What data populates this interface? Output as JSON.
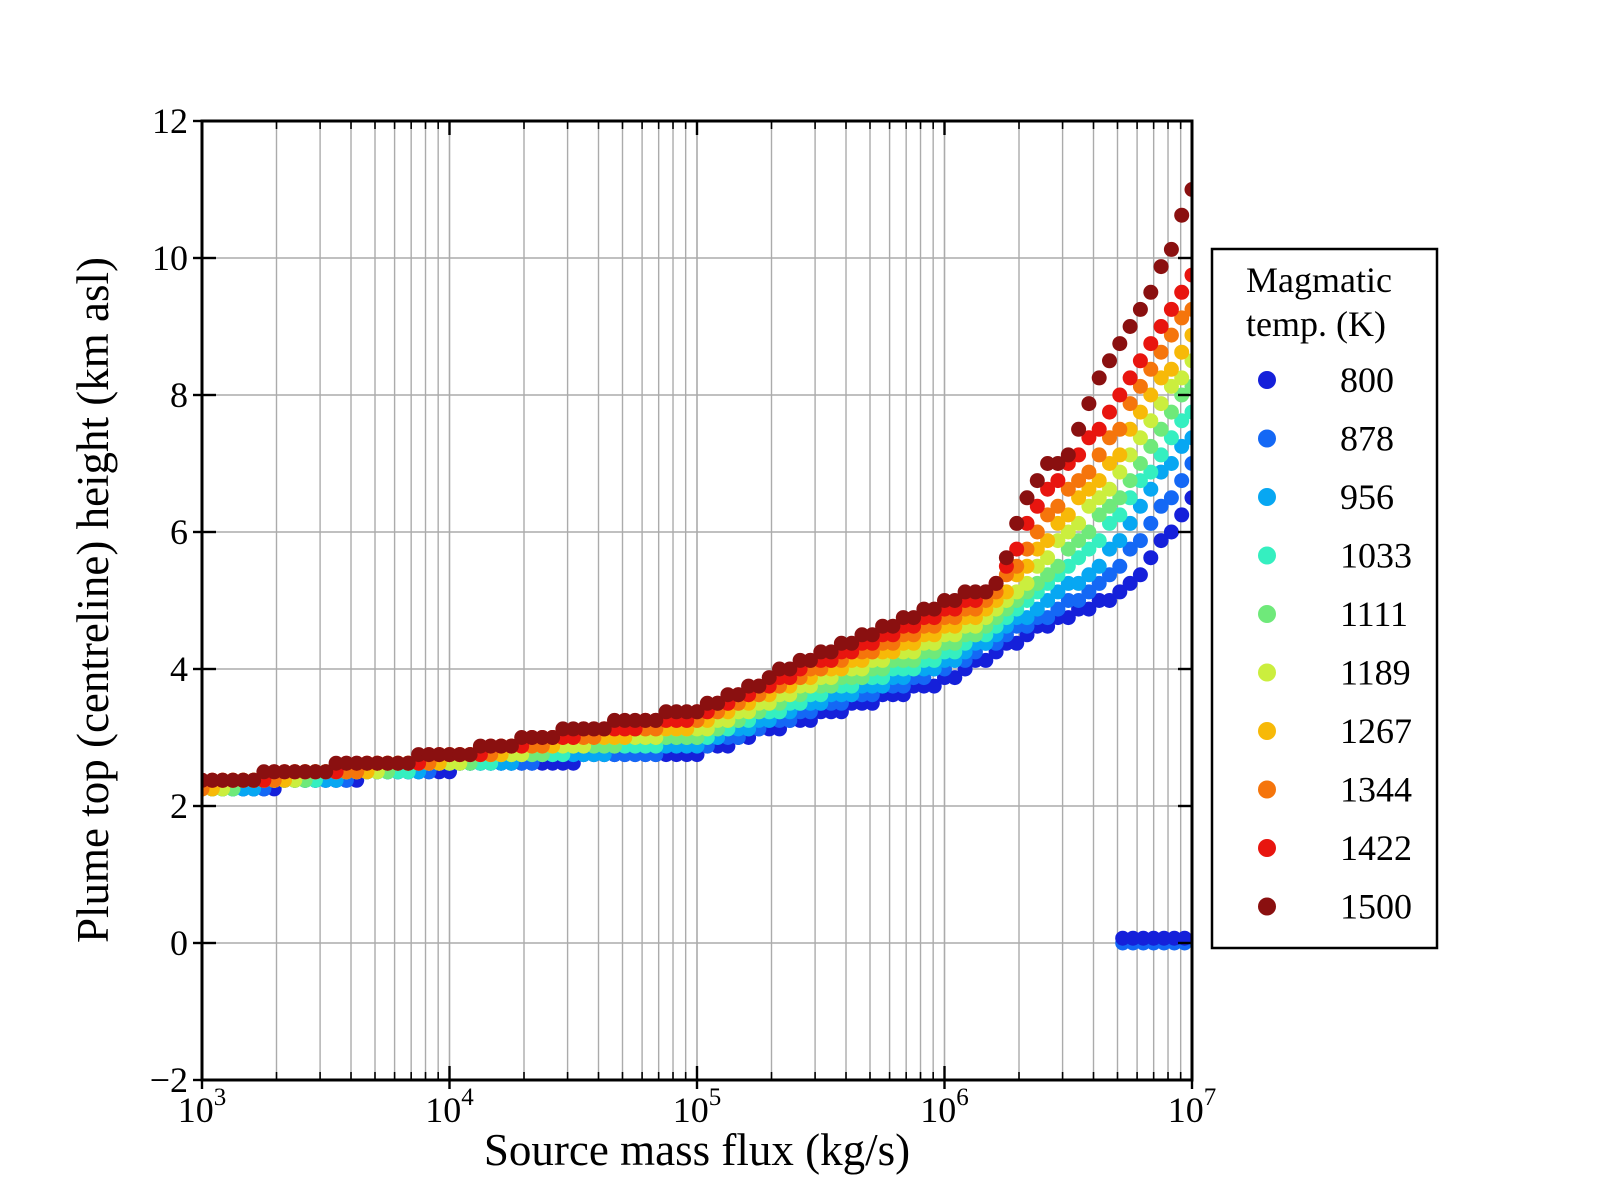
{
  "figure": {
    "background_color": "#ffffff",
    "grid_color": "#ababab",
    "spine_color": "#000000",
    "legend_border_color": "#000000",
    "legend_background": "#ffffff"
  },
  "axes": {
    "x": {
      "label": "Source mass flux (kg/s)",
      "scale": "log",
      "tick_exponents": [
        3,
        4,
        5,
        6,
        7
      ],
      "tick_base": "10"
    },
    "y": {
      "label": "Plume top (centreline) height (km asl)",
      "ticks": [
        -2,
        0,
        2,
        4,
        6,
        8,
        10,
        12
      ]
    }
  },
  "legend": {
    "title_lines": [
      "Magmatic",
      "temp. (K)"
    ],
    "entries": [
      {
        "label": "800",
        "color": "#1520DA"
      },
      {
        "label": "878",
        "color": "#1468F5"
      },
      {
        "label": "956",
        "color": "#07A7F2"
      },
      {
        "label": "1033",
        "color": "#35EFC0"
      },
      {
        "label": "1111",
        "color": "#6FE97A"
      },
      {
        "label": "1189",
        "color": "#CBEE3E"
      },
      {
        "label": "1267",
        "color": "#F7B908"
      },
      {
        "label": "1344",
        "color": "#F5750C"
      },
      {
        "label": "1422",
        "color": "#E8150F"
      },
      {
        "label": "1500",
        "color": "#8A1010"
      }
    ]
  },
  "chart_data": {
    "type": "scatter",
    "title": "",
    "xlabel": "Source mass flux (kg/s)",
    "ylabel": "Plume top (centreline) height (km asl)",
    "x_scale": "log",
    "xlim": [
      1000,
      10000000
    ],
    "ylim": [
      -2,
      12
    ],
    "grid": true,
    "legend_position": "right-outside",
    "legend_title": "Magmatic temp. (K)",
    "marker": "circle",
    "marker_radius_px": 7.5,
    "samples_per_decade": 24,
    "height_quantum_km": 0.125,
    "control_log10_flux": [
      3.0,
      3.5,
      4.0,
      4.5,
      5.0,
      5.5,
      5.8,
      6.0,
      6.15,
      6.22,
      6.3,
      6.4,
      6.5,
      6.6,
      6.7,
      6.8,
      6.9,
      7.0
    ],
    "series": [
      {
        "name": "800",
        "temp_K": 800,
        "color": "#1520DA",
        "plume_height_km": [
          2.2,
          2.38,
          2.56,
          2.68,
          2.78,
          3.36,
          3.62,
          3.85,
          4.15,
          4.3,
          4.45,
          4.6,
          4.75,
          4.9,
          5.05,
          5.4,
          5.95,
          6.5
        ]
      },
      {
        "name": "878",
        "temp_K": 878,
        "color": "#1468F5",
        "plume_height_km": [
          2.22,
          2.4,
          2.58,
          2.73,
          2.85,
          3.46,
          3.74,
          4.0,
          4.3,
          4.45,
          4.6,
          4.75,
          4.95,
          5.15,
          5.45,
          5.95,
          6.45,
          6.95
        ]
      },
      {
        "name": "956",
        "temp_K": 956,
        "color": "#07A7F2",
        "plume_height_km": [
          2.23,
          2.42,
          2.6,
          2.77,
          2.92,
          3.55,
          3.85,
          4.1,
          4.4,
          4.55,
          4.72,
          4.95,
          5.2,
          5.45,
          5.85,
          6.4,
          6.95,
          7.4
        ]
      },
      {
        "name": "1033",
        "temp_K": 1033,
        "color": "#35EFC0",
        "plume_height_km": [
          2.25,
          2.44,
          2.62,
          2.82,
          2.98,
          3.65,
          3.97,
          4.2,
          4.5,
          4.65,
          4.85,
          5.15,
          5.45,
          5.8,
          6.2,
          6.75,
          7.3,
          7.8
        ]
      },
      {
        "name": "1111",
        "temp_K": 1111,
        "color": "#6FE97A",
        "plume_height_km": [
          2.26,
          2.46,
          2.64,
          2.87,
          3.05,
          3.75,
          4.08,
          4.32,
          4.6,
          4.78,
          5.0,
          5.35,
          5.7,
          6.1,
          6.5,
          7.1,
          7.65,
          8.15
        ]
      },
      {
        "name": "1189",
        "temp_K": 1189,
        "color": "#CBEE3E",
        "plume_height_km": [
          2.28,
          2.47,
          2.66,
          2.91,
          3.12,
          3.84,
          4.2,
          4.46,
          4.7,
          4.9,
          5.15,
          5.6,
          6.0,
          6.4,
          6.8,
          7.4,
          8.0,
          8.5
        ]
      },
      {
        "name": "1267",
        "temp_K": 1267,
        "color": "#F7B908",
        "plume_height_km": [
          2.29,
          2.49,
          2.69,
          2.96,
          3.19,
          3.94,
          4.31,
          4.59,
          4.8,
          5.0,
          5.35,
          5.85,
          6.3,
          6.7,
          7.1,
          7.8,
          8.35,
          8.85
        ]
      },
      {
        "name": "1344",
        "temp_K": 1344,
        "color": "#F5750C",
        "plume_height_km": [
          2.31,
          2.51,
          2.71,
          3.01,
          3.25,
          4.04,
          4.43,
          4.73,
          4.92,
          5.15,
          5.6,
          6.2,
          6.6,
          7.0,
          7.5,
          8.2,
          8.8,
          9.3
        ]
      },
      {
        "name": "1422",
        "temp_K": 1422,
        "color": "#E8150F",
        "plume_height_km": [
          2.32,
          2.53,
          2.73,
          3.05,
          3.32,
          4.13,
          4.54,
          4.86,
          5.03,
          5.35,
          5.85,
          6.6,
          6.95,
          7.4,
          7.9,
          8.6,
          9.2,
          9.7
        ]
      },
      {
        "name": "1500",
        "temp_K": 1500,
        "color": "#8A1010",
        "plume_height_km": [
          2.34,
          2.55,
          2.75,
          3.1,
          3.39,
          4.23,
          4.66,
          5.0,
          5.12,
          5.3,
          6.2,
          7.0,
          7.1,
          8.1,
          8.7,
          9.3,
          10.0,
          11.0
        ]
      }
    ],
    "collapsed_points": {
      "note": "cluster of blue dots near 0 km at high mass flux",
      "log10_flux_start": 6.72,
      "log10_flux_end": 7.0,
      "rows": [
        {
          "name": "878",
          "color": "#1468F5",
          "height_km": 0.0
        },
        {
          "name": "800",
          "color": "#1520DA",
          "height_km": 0.07
        }
      ]
    }
  }
}
